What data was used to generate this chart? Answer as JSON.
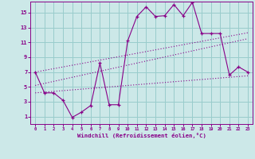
{
  "xlabel": "Windchill (Refroidissement éolien,°C)",
  "bg_color": "#cce8e8",
  "grid_color": "#99cccc",
  "line_color": "#880088",
  "xlim": [
    -0.5,
    23.5
  ],
  "ylim": [
    0,
    16.5
  ],
  "xticks": [
    0,
    1,
    2,
    3,
    4,
    5,
    6,
    7,
    8,
    9,
    10,
    11,
    12,
    13,
    14,
    15,
    16,
    17,
    18,
    19,
    20,
    21,
    22,
    23
  ],
  "yticks": [
    1,
    3,
    5,
    7,
    9,
    11,
    13,
    15
  ],
  "line1_x": [
    0,
    1,
    2,
    3,
    4,
    5,
    6,
    7,
    8,
    9,
    10,
    11,
    12,
    13,
    14,
    15,
    16,
    17,
    18,
    19,
    20,
    21,
    22,
    23
  ],
  "line1_y": [
    7.0,
    4.2,
    4.2,
    3.2,
    0.9,
    1.6,
    2.5,
    8.2,
    2.6,
    2.6,
    11.2,
    14.5,
    15.8,
    14.5,
    14.6,
    16.1,
    14.6,
    16.4,
    12.2,
    12.2,
    12.2,
    6.6,
    7.7,
    7.0
  ],
  "line2_x": [
    0,
    23
  ],
  "line2_y": [
    7.0,
    12.3
  ],
  "line3_x": [
    0,
    23
  ],
  "line3_y": [
    5.2,
    11.5
  ],
  "line4_x": [
    0,
    23
  ],
  "line4_y": [
    4.2,
    6.5
  ]
}
